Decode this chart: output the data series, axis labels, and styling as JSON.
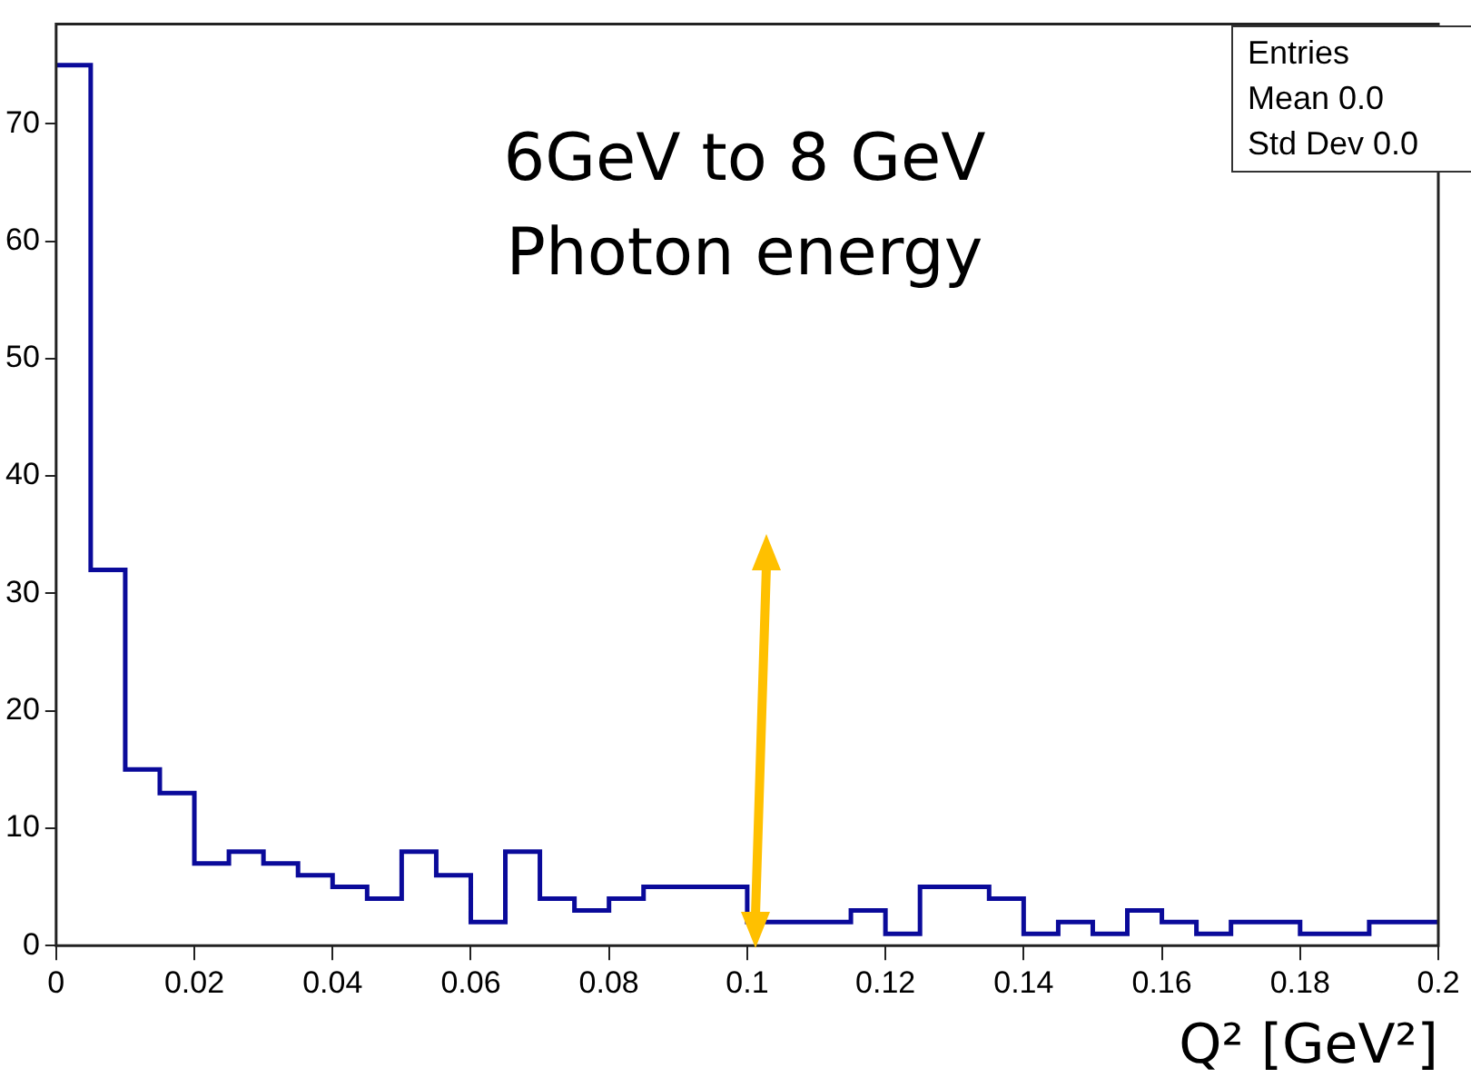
{
  "chart_data": {
    "type": "histogram",
    "xlabel": "Q² [GeV²]",
    "bins": [
      0,
      0.005,
      0.01,
      0.015,
      0.02,
      0.025,
      0.03,
      0.035,
      0.04,
      0.045,
      0.05,
      0.055,
      0.06,
      0.065,
      0.07,
      0.075,
      0.08,
      0.085,
      0.09,
      0.095,
      0.1,
      0.105,
      0.11,
      0.115,
      0.12,
      0.125,
      0.13,
      0.135,
      0.14,
      0.145,
      0.15,
      0.155,
      0.16,
      0.165,
      0.17,
      0.175,
      0.18,
      0.185,
      0.19,
      0.195,
      0.2
    ],
    "values": [
      75,
      32,
      15,
      13,
      7,
      8,
      7,
      6,
      5,
      4,
      8,
      6,
      2,
      8,
      4,
      3,
      4,
      5,
      5,
      5,
      2,
      2,
      2,
      3,
      1,
      5,
      5,
      4,
      1,
      2,
      1,
      3,
      2,
      1,
      2,
      2,
      1,
      1,
      2,
      2
    ],
    "color": "#0a0a9a",
    "xlim": [
      0,
      0.2
    ],
    "xticks": [
      0,
      0.02,
      0.04,
      0.06,
      0.08,
      0.1,
      0.12,
      0.14,
      0.16,
      0.18,
      0.2
    ],
    "ylim": [
      0,
      78.5
    ],
    "yticks": [
      0,
      10,
      20,
      30,
      40,
      50,
      60,
      70
    ],
    "annotations": [
      "6GeV to 8 GeV",
      "Photon energy",
      "Entries",
      "Mean 0.0",
      "Std Dev 0.0"
    ]
  }
}
